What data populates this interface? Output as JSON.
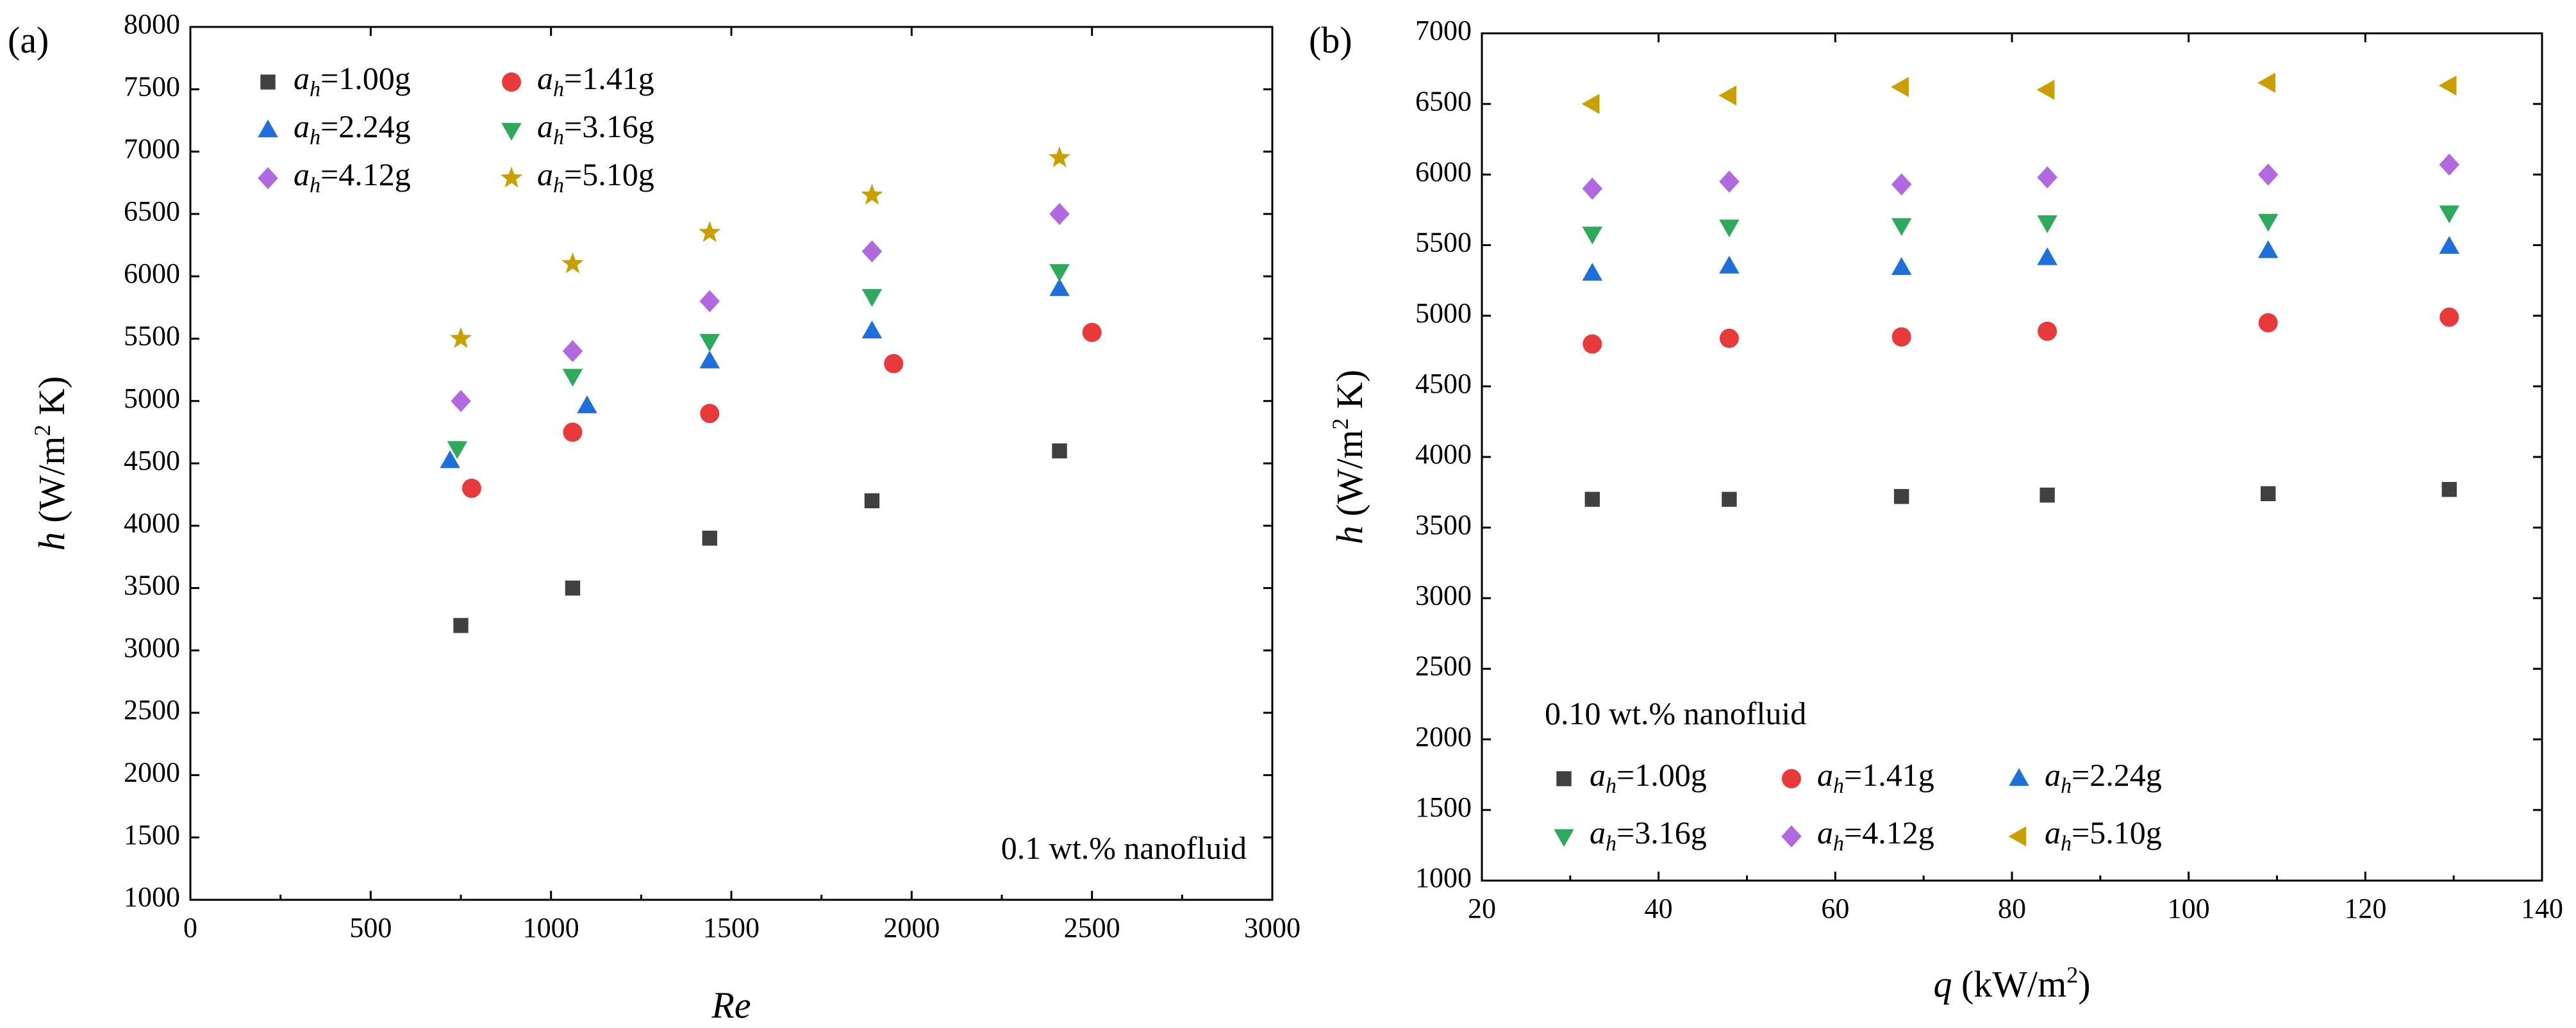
{
  "chart_data": [
    {
      "panel_label": "(a)",
      "type": "scatter",
      "xlabel": "Re",
      "ylabel_var": "h",
      "ylabel_unit": " (W/m",
      "ylabel_sup": "2",
      "ylabel_tail": " K)",
      "xlim": [
        0,
        3000
      ],
      "ylim": [
        1000,
        8000
      ],
      "xticks": [
        0,
        500,
        1000,
        1500,
        2000,
        2500,
        3000
      ],
      "yticks": [
        1000,
        1500,
        2000,
        2500,
        3000,
        3500,
        4000,
        4500,
        5000,
        5500,
        6000,
        6500,
        7000,
        7500,
        8000
      ],
      "annotation": "0.1 wt.% nanofluid",
      "legend_position": "top-left",
      "legend_columns": 2,
      "series": [
        {
          "name_sub": "h",
          "name_value": "=1.00g",
          "marker": "square",
          "color": "#404040",
          "x": [
            750,
            1060,
            1440,
            1890,
            2410
          ],
          "y": [
            3200,
            3500,
            3900,
            4200,
            4600
          ]
        },
        {
          "name_sub": "h",
          "name_value": "=1.41g",
          "marker": "circle",
          "color": "#e8393b",
          "x": [
            780,
            1060,
            1440,
            1950,
            2500
          ],
          "y": [
            4300,
            4750,
            4900,
            5300,
            5550
          ]
        },
        {
          "name_sub": "h",
          "name_value": "=2.24g",
          "marker": "triangle-up",
          "color": "#1e6fd9",
          "x": [
            720,
            1100,
            1440,
            1890,
            2410
          ],
          "y": [
            4520,
            4960,
            5320,
            5560,
            5900
          ]
        },
        {
          "name_sub": "h",
          "name_value": "=3.16g",
          "marker": "triangle-down",
          "color": "#2eaa5c",
          "x": [
            740,
            1060,
            1440,
            1890,
            2410
          ],
          "y": [
            4620,
            5200,
            5480,
            5840,
            6040
          ]
        },
        {
          "name_sub": "h",
          "name_value": "=4.12g",
          "marker": "diamond",
          "color": "#b069e0",
          "x": [
            750,
            1060,
            1440,
            1890,
            2410
          ],
          "y": [
            5000,
            5400,
            5800,
            6200,
            6500
          ]
        },
        {
          "name_sub": "h",
          "name_value": "=5.10g",
          "marker": "star",
          "color": "#c9a000",
          "x": [
            750,
            1060,
            1440,
            1890,
            2410
          ],
          "y": [
            5500,
            6100,
            6350,
            6650,
            6950
          ]
        }
      ]
    },
    {
      "panel_label": "(b)",
      "type": "scatter",
      "xlabel_var": "q",
      "xlabel_unit": " (kW/m",
      "xlabel_sup": "2",
      "xlabel_tail": ")",
      "ylabel_var": "h",
      "ylabel_unit": " (W/m",
      "ylabel_sup": "2",
      "ylabel_tail": " K)",
      "xlim": [
        20,
        140
      ],
      "ylim": [
        1000,
        7000
      ],
      "xticks": [
        20,
        40,
        60,
        80,
        100,
        120,
        140
      ],
      "yticks": [
        1000,
        1500,
        2000,
        2500,
        3000,
        3500,
        4000,
        4500,
        5000,
        5500,
        6000,
        6500,
        7000
      ],
      "annotation": "0.10 wt.% nanofluid",
      "legend_position": "bottom-left",
      "legend_columns": 3,
      "series": [
        {
          "name_sub": "h",
          "name_value": "=1.00g",
          "marker": "square",
          "color": "#404040",
          "x": [
            32.5,
            48,
            67.5,
            84,
            109,
            129.5
          ],
          "y": [
            3700,
            3700,
            3720,
            3730,
            3740,
            3770
          ]
        },
        {
          "name_sub": "h",
          "name_value": "=1.41g",
          "marker": "circle",
          "color": "#e8393b",
          "x": [
            32.5,
            48,
            67.5,
            84,
            109,
            129.5
          ],
          "y": [
            4800,
            4840,
            4850,
            4890,
            4950,
            4990
          ]
        },
        {
          "name_sub": "h",
          "name_value": "=2.24g",
          "marker": "triangle-up",
          "color": "#1e6fd9",
          "x": [
            32.5,
            48,
            67.5,
            84,
            109,
            129.5
          ],
          "y": [
            5300,
            5350,
            5340,
            5410,
            5460,
            5490
          ]
        },
        {
          "name_sub": "h",
          "name_value": "=3.16g",
          "marker": "triangle-down",
          "color": "#2eaa5c",
          "x": [
            32.5,
            48,
            67.5,
            84,
            109,
            129.5
          ],
          "y": [
            5580,
            5630,
            5640,
            5660,
            5670,
            5730
          ]
        },
        {
          "name_sub": "h",
          "name_value": "=4.12g",
          "marker": "diamond",
          "color": "#b069e0",
          "x": [
            32.5,
            48,
            67.5,
            84,
            109,
            129.5
          ],
          "y": [
            5900,
            5950,
            5930,
            5980,
            6000,
            6070
          ]
        },
        {
          "name_sub": "h",
          "name_value": "=5.10g",
          "marker": "triangle-left",
          "color": "#c9a000",
          "x": [
            32.5,
            48,
            67.5,
            84,
            109,
            129.5
          ],
          "y": [
            6500,
            6560,
            6620,
            6600,
            6650,
            6630
          ]
        }
      ]
    }
  ]
}
